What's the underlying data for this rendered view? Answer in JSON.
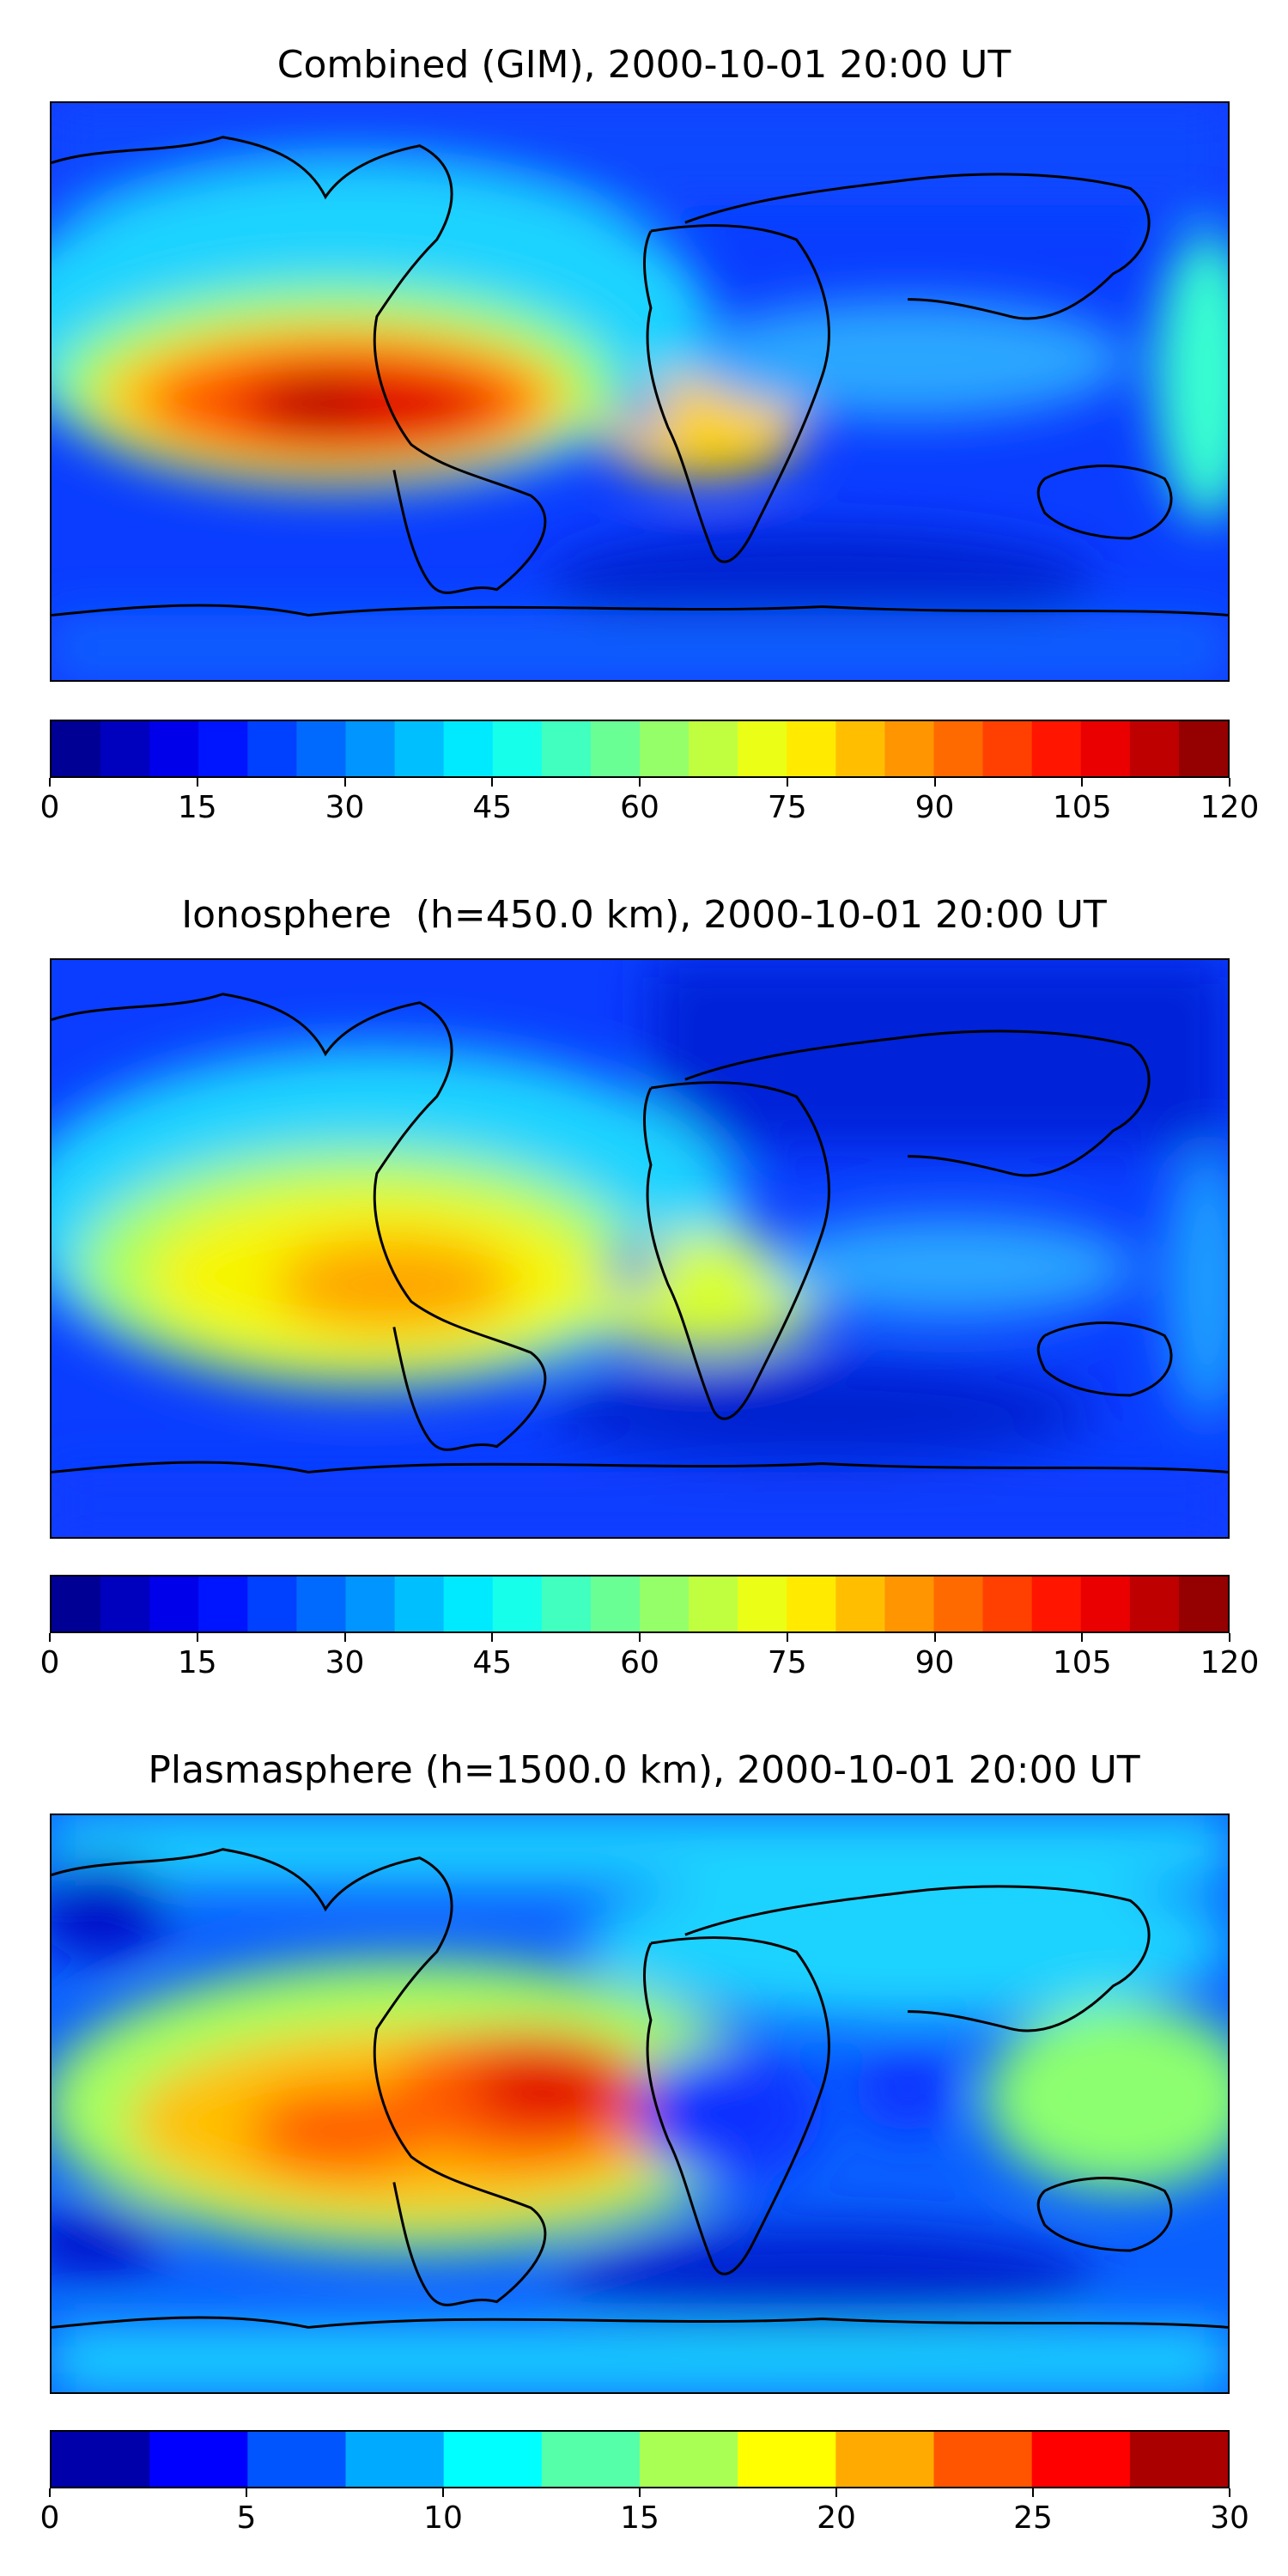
{
  "panels": [
    {
      "title": "Combined (GIM), 2000-10-01 20:00 UT",
      "colorbar": {
        "levels": [
          0,
          5,
          10,
          15,
          20,
          25,
          30,
          35,
          40,
          45,
          50,
          55,
          60,
          65,
          70,
          75,
          80,
          85,
          90,
          95,
          100,
          105,
          110,
          115,
          120
        ],
        "ticks": [
          "0",
          "15",
          "30",
          "45",
          "60",
          "75",
          "90",
          "105",
          "120"
        ],
        "min": 0,
        "max": 120
      }
    },
    {
      "title": "Ionosphere  (h=450.0 km), 2000-10-01 20:00 UT",
      "colorbar": {
        "levels": [
          0,
          5,
          10,
          15,
          20,
          25,
          30,
          35,
          40,
          45,
          50,
          55,
          60,
          65,
          70,
          75,
          80,
          85,
          90,
          95,
          100,
          105,
          110,
          115,
          120
        ],
        "ticks": [
          "0",
          "15",
          "30",
          "45",
          "60",
          "75",
          "90",
          "105",
          "120"
        ],
        "min": 0,
        "max": 120
      }
    },
    {
      "title": "Plasmasphere (h=1500.0 km), 2000-10-01 20:00 UT",
      "colorbar": {
        "levels": [
          0,
          2.5,
          5,
          7.5,
          10,
          12.5,
          15,
          17.5,
          20,
          22.5,
          25,
          27.5,
          30
        ],
        "ticks": [
          "0",
          "5",
          "10",
          "15",
          "20",
          "25",
          "30"
        ],
        "min": 0,
        "max": 30
      }
    }
  ],
  "colormap": "jet"
}
